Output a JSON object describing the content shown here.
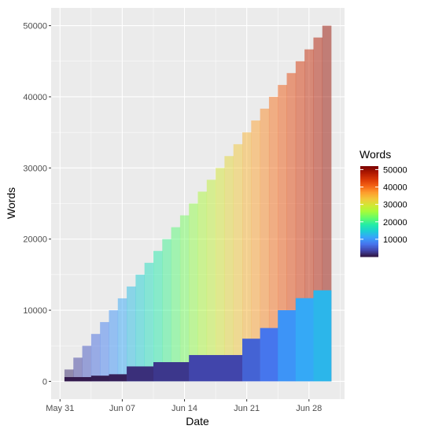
{
  "chart_data": {
    "type": "bar",
    "xlabel": "Date",
    "ylabel": "Words",
    "x_ticks": [
      "May 31",
      "Jun 07",
      "Jun 14",
      "Jun 21",
      "Jun 28"
    ],
    "x_tick_dates": [
      "2020-05-31",
      "2020-06-07",
      "2020-06-14",
      "2020-06-21",
      "2020-06-28"
    ],
    "xlim": [
      "2020-05-30",
      "2020-07-02"
    ],
    "y_ticks": [
      0,
      10000,
      20000,
      30000,
      40000,
      50000
    ],
    "ylim": [
      -2500,
      52500
    ],
    "grid": true,
    "legend_position": "right",
    "series": [
      {
        "kind": "cumulative-daily-bars",
        "color_scale": "fill-by-value",
        "opacity": 0.5,
        "dates": [
          "2020-06-01",
          "2020-06-02",
          "2020-06-03",
          "2020-06-04",
          "2020-06-05",
          "2020-06-06",
          "2020-06-07",
          "2020-06-08",
          "2020-06-09",
          "2020-06-10",
          "2020-06-11",
          "2020-06-12",
          "2020-06-13",
          "2020-06-14",
          "2020-06-15",
          "2020-06-16",
          "2020-06-17",
          "2020-06-18",
          "2020-06-19",
          "2020-06-20",
          "2020-06-21",
          "2020-06-22",
          "2020-06-23",
          "2020-06-24",
          "2020-06-25",
          "2020-06-26",
          "2020-06-27",
          "2020-06-28",
          "2020-06-29",
          "2020-06-30"
        ],
        "values": [
          1667,
          3333,
          5000,
          6667,
          8333,
          10000,
          11667,
          13333,
          15000,
          16667,
          18333,
          20000,
          21667,
          23333,
          25000,
          26667,
          28333,
          30000,
          31667,
          33333,
          35000,
          36667,
          38333,
          40000,
          41667,
          43333,
          45000,
          46667,
          48333,
          50000
        ]
      },
      {
        "kind": "weekly-step-bars",
        "color_scale": "fill-by-value",
        "opacity": 1.0,
        "start_dates": [
          "2020-06-01",
          "2020-06-04",
          "2020-06-06",
          "2020-06-08",
          "2020-06-11",
          "2020-06-15",
          "2020-06-21",
          "2020-06-23",
          "2020-06-25",
          "2020-06-27",
          "2020-06-29"
        ],
        "end_dates": [
          "2020-06-04",
          "2020-06-06",
          "2020-06-08",
          "2020-06-11",
          "2020-06-15",
          "2020-06-21",
          "2020-06-23",
          "2020-06-25",
          "2020-06-27",
          "2020-06-29",
          "2020-07-01"
        ],
        "values": [
          600,
          800,
          1000,
          2100,
          2700,
          3700,
          6000,
          7500,
          10000,
          11700,
          12800
        ]
      }
    ],
    "legend": {
      "title": "Words",
      "labels": [
        "10000",
        "20000",
        "30000",
        "40000",
        "50000"
      ],
      "values": [
        10000,
        20000,
        30000,
        40000,
        50000
      ],
      "range": [
        0,
        52000
      ],
      "colormap": [
        "#30123b",
        "#4145ab",
        "#4675ed",
        "#39a2fc",
        "#1bcfd4",
        "#24eca6",
        "#61fc6c",
        "#a4fc3b",
        "#d1e834",
        "#f3c63a",
        "#fe9b2d",
        "#f36315",
        "#d93806",
        "#b11901",
        "#7a0402"
      ]
    }
  }
}
